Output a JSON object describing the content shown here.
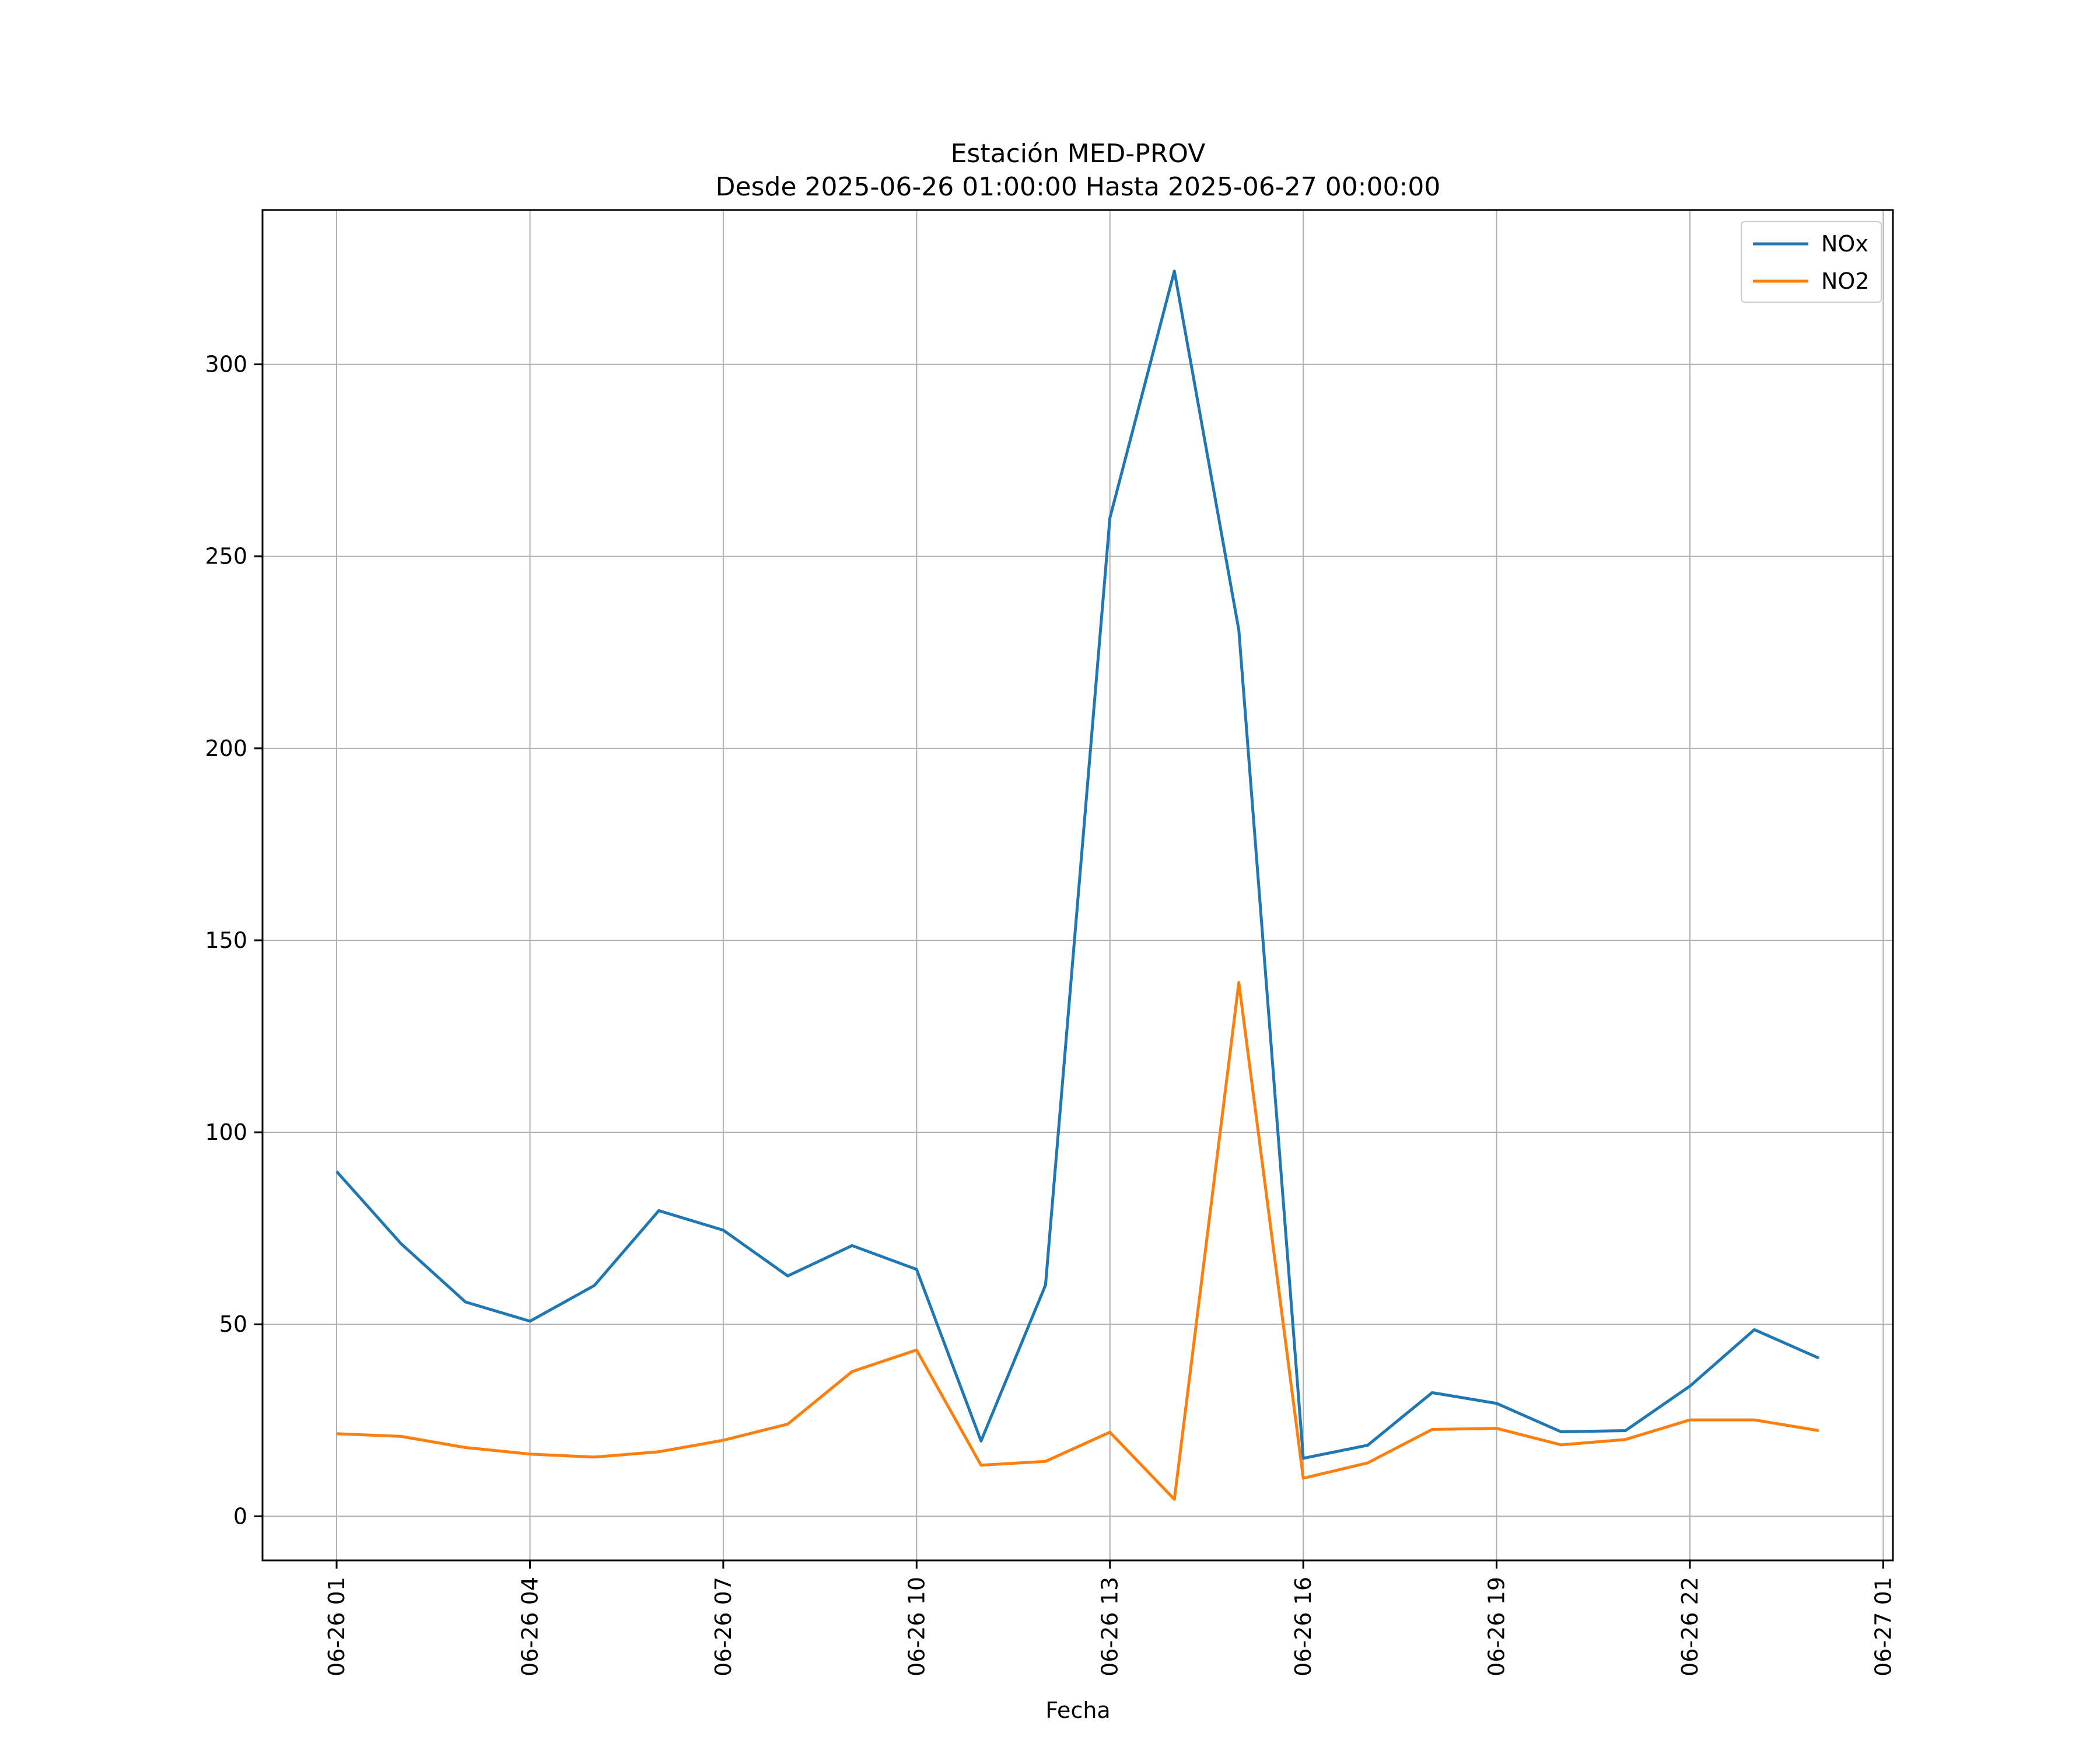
{
  "chart_data": {
    "type": "line",
    "title": "Estación MED-PROV",
    "subtitle": "Desde 2025-06-26 01:00:00 Hasta 2025-06-27 00:00:00",
    "xlabel": "Fecha",
    "ylabel": "",
    "x": [
      "2025-06-26 01:00",
      "2025-06-26 02:00",
      "2025-06-26 03:00",
      "2025-06-26 04:00",
      "2025-06-26 05:00",
      "2025-06-26 06:00",
      "2025-06-26 07:00",
      "2025-06-26 08:00",
      "2025-06-26 09:00",
      "2025-06-26 10:00",
      "2025-06-26 11:00",
      "2025-06-26 12:00",
      "2025-06-26 13:00",
      "2025-06-26 14:00",
      "2025-06-26 15:00",
      "2025-06-26 16:00",
      "2025-06-26 17:00",
      "2025-06-26 18:00",
      "2025-06-26 19:00",
      "2025-06-26 20:00",
      "2025-06-26 21:00",
      "2025-06-26 22:00",
      "2025-06-26 23:00",
      "2025-06-27 00:00"
    ],
    "series": [
      {
        "name": "NOx",
        "color": "#1f77b4",
        "values": [
          89.8,
          71.0,
          55.8,
          50.8,
          60.1,
          79.6,
          74.5,
          62.6,
          70.5,
          64.3,
          19.6,
          60.2,
          260.0,
          324.3,
          230.8,
          15.1,
          18.5,
          32.2,
          29.4,
          22.0,
          22.3,
          33.9,
          48.6,
          41.2
        ]
      },
      {
        "name": "NO2",
        "color": "#ff7f0e",
        "values": [
          21.5,
          20.8,
          17.9,
          16.2,
          15.4,
          16.8,
          19.8,
          24.0,
          37.7,
          43.3,
          13.3,
          14.3,
          21.9,
          4.4,
          139.0,
          9.9,
          13.9,
          22.6,
          22.9,
          18.6,
          20.0,
          25.1,
          25.1,
          22.3
        ]
      }
    ],
    "xticks": [
      "06-26 01",
      "06-26 04",
      "06-26 07",
      "06-26 10",
      "06-26 13",
      "06-26 16",
      "06-26 19",
      "06-26 22",
      "06-27 01"
    ],
    "yticks": [
      0,
      50,
      100,
      150,
      200,
      250,
      300
    ],
    "ylim": [
      -11.5,
      340.2
    ],
    "xlim": [
      "2025-06-25 23:51",
      "2025-06-27 01:09"
    ],
    "grid": true,
    "legend_position": "top-right"
  }
}
